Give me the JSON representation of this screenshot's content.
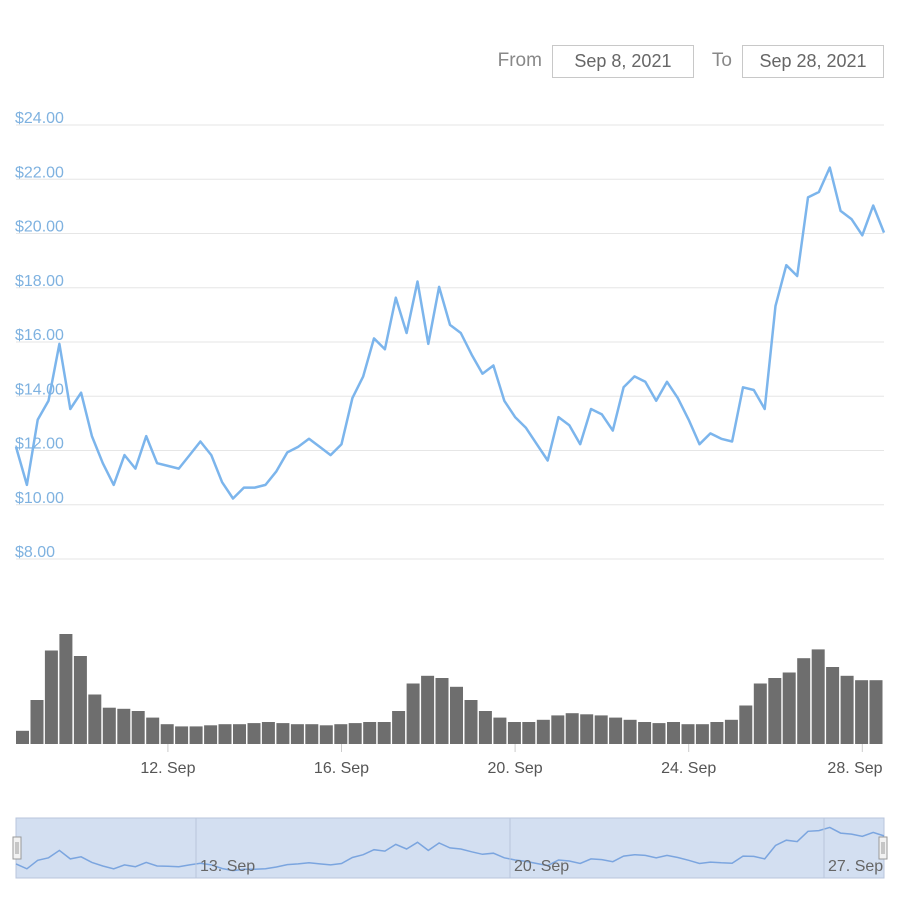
{
  "range_selector": {
    "from_label": "From",
    "from_value": "Sep 8, 2021",
    "to_label": "To",
    "to_value": "Sep 28, 2021"
  },
  "colors": {
    "price_line": "#7cb5ec",
    "volume_bar": "#6e6e6e",
    "grid": "#e6e6e6",
    "y_labels": "#7fb2e0",
    "navigator_fill": "#d3dff1",
    "navigator_line": "#7ba5df"
  },
  "chart_data": {
    "type": "line",
    "y_axis": {
      "ticks": [
        "$8.00",
        "$10.00",
        "$12.00",
        "$14.00",
        "$16.00",
        "$18.00",
        "$20.00",
        "$22.00",
        "$24.00"
      ],
      "range": [
        8,
        24
      ],
      "tick_values": [
        8,
        10,
        12,
        14,
        16,
        18,
        20,
        22,
        24
      ]
    },
    "x_axis": {
      "start": "2021-09-08T12:00",
      "end": "2021-09-28T12:00",
      "ticks": [
        {
          "label": "12. Sep",
          "date": "2021-09-12"
        },
        {
          "label": "16. Sep",
          "date": "2021-09-16"
        },
        {
          "label": "20. Sep",
          "date": "2021-09-20"
        },
        {
          "label": "24. Sep",
          "date": "2021-09-24"
        },
        {
          "label": "28. Sep",
          "date": "2021-09-28"
        }
      ]
    },
    "price_series": {
      "x": [
        "2021-09-08T12:00",
        "2021-09-08T18:00",
        "2021-09-09T00:00",
        "2021-09-09T06:00",
        "2021-09-09T12:00",
        "2021-09-09T18:00",
        "2021-09-10T00:00",
        "2021-09-10T06:00",
        "2021-09-10T12:00",
        "2021-09-10T18:00",
        "2021-09-11T00:00",
        "2021-09-11T06:00",
        "2021-09-11T12:00",
        "2021-09-11T18:00",
        "2021-09-12T00:00",
        "2021-09-12T06:00",
        "2021-09-12T12:00",
        "2021-09-12T18:00",
        "2021-09-13T00:00",
        "2021-09-13T06:00",
        "2021-09-13T12:00",
        "2021-09-13T18:00",
        "2021-09-14T00:00",
        "2021-09-14T06:00",
        "2021-09-14T12:00",
        "2021-09-14T18:00",
        "2021-09-15T00:00",
        "2021-09-15T06:00",
        "2021-09-15T12:00",
        "2021-09-15T18:00",
        "2021-09-16T00:00",
        "2021-09-16T06:00",
        "2021-09-16T12:00",
        "2021-09-16T18:00",
        "2021-09-17T00:00",
        "2021-09-17T06:00",
        "2021-09-17T12:00",
        "2021-09-17T18:00",
        "2021-09-18T00:00",
        "2021-09-18T06:00",
        "2021-09-18T12:00",
        "2021-09-18T18:00",
        "2021-09-19T00:00",
        "2021-09-19T06:00",
        "2021-09-19T12:00",
        "2021-09-19T18:00",
        "2021-09-20T00:00",
        "2021-09-20T06:00",
        "2021-09-20T12:00",
        "2021-09-20T18:00",
        "2021-09-21T00:00",
        "2021-09-21T06:00",
        "2021-09-21T12:00",
        "2021-09-21T18:00",
        "2021-09-22T00:00",
        "2021-09-22T06:00",
        "2021-09-22T12:00",
        "2021-09-22T18:00",
        "2021-09-23T00:00",
        "2021-09-23T06:00",
        "2021-09-23T12:00",
        "2021-09-23T18:00",
        "2021-09-24T00:00",
        "2021-09-24T06:00",
        "2021-09-24T12:00",
        "2021-09-24T18:00",
        "2021-09-25T00:00",
        "2021-09-25T06:00",
        "2021-09-25T12:00",
        "2021-09-25T18:00",
        "2021-09-26T00:00",
        "2021-09-26T06:00",
        "2021-09-26T12:00",
        "2021-09-26T18:00",
        "2021-09-27T00:00",
        "2021-09-27T06:00",
        "2021-09-27T12:00",
        "2021-09-27T18:00",
        "2021-09-28T00:00",
        "2021-09-28T06:00",
        "2021-09-28T12:00"
      ],
      "y": [
        11.8,
        10.4,
        12.8,
        13.5,
        15.6,
        13.2,
        13.8,
        12.2,
        11.2,
        10.4,
        11.5,
        11.0,
        12.2,
        11.2,
        11.1,
        11.0,
        11.5,
        12.0,
        11.5,
        10.5,
        9.9,
        10.3,
        10.3,
        10.4,
        10.9,
        11.6,
        11.8,
        12.1,
        11.8,
        11.5,
        11.9,
        13.6,
        14.4,
        15.8,
        15.4,
        17.3,
        16.0,
        17.9,
        15.6,
        17.7,
        16.3,
        16.0,
        15.2,
        14.5,
        14.8,
        13.5,
        12.9,
        12.5,
        11.9,
        11.3,
        12.9,
        12.6,
        11.9,
        13.2,
        13.0,
        12.4,
        14.0,
        14.4,
        14.2,
        13.5,
        14.2,
        13.6,
        12.8,
        11.9,
        12.3,
        12.1,
        12.0,
        14.0,
        13.9,
        13.2,
        17.0,
        18.5,
        18.1,
        21.0,
        21.2,
        22.1,
        20.5,
        20.2,
        19.6,
        20.7,
        19.7
      ]
    },
    "volume_series": {
      "values": [
        0.12,
        0.4,
        0.85,
        1.0,
        0.8,
        0.45,
        0.33,
        0.32,
        0.3,
        0.24,
        0.18,
        0.16,
        0.16,
        0.17,
        0.18,
        0.18,
        0.19,
        0.2,
        0.19,
        0.18,
        0.18,
        0.17,
        0.18,
        0.19,
        0.2,
        0.2,
        0.3,
        0.55,
        0.62,
        0.6,
        0.52,
        0.4,
        0.3,
        0.24,
        0.2,
        0.2,
        0.22,
        0.26,
        0.28,
        0.27,
        0.26,
        0.24,
        0.22,
        0.2,
        0.19,
        0.2,
        0.18,
        0.18,
        0.2,
        0.22,
        0.35,
        0.55,
        0.6,
        0.65,
        0.78,
        0.86,
        0.7,
        0.62,
        0.58,
        0.58
      ],
      "max_label": ""
    },
    "navigator": {
      "tick_labels": [
        "13. Sep",
        "20. Sep",
        "27. Sep"
      ]
    }
  }
}
